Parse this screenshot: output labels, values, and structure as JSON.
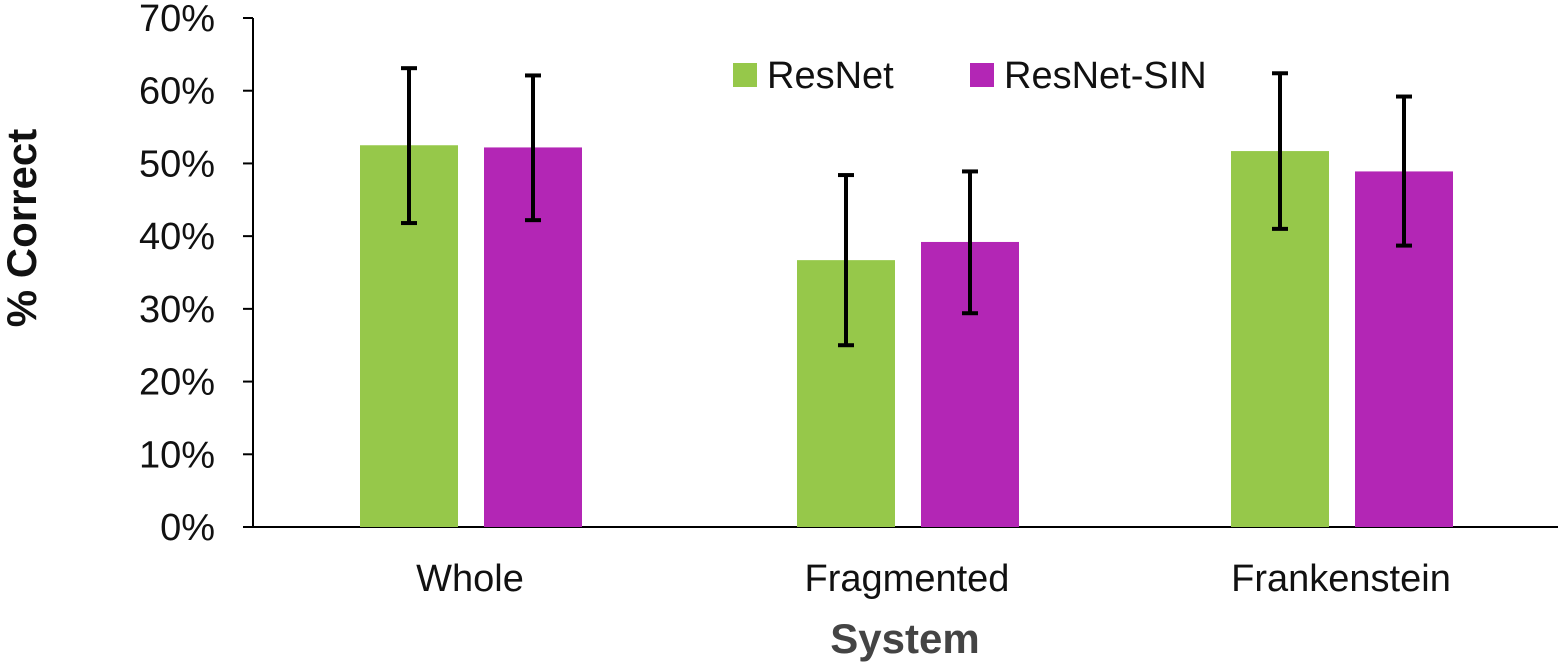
{
  "chart_data": {
    "type": "bar",
    "title": "",
    "xlabel": "System",
    "ylabel": "% Correct",
    "ylim": [
      0,
      70
    ],
    "yticks": [
      0,
      10,
      20,
      30,
      40,
      50,
      60,
      70
    ],
    "ytick_format": "percent",
    "categories": [
      "Whole",
      "Fragmented",
      "Frankenstein"
    ],
    "series": [
      {
        "name": "ResNet",
        "color": "#96c84a",
        "values": [
          52.5,
          36.7,
          51.7
        ],
        "error_low": [
          41.8,
          25.0,
          41.0
        ],
        "error_high": [
          63.1,
          48.4,
          62.4
        ]
      },
      {
        "name": "ResNet-SIN",
        "color": "#b326b5",
        "values": [
          52.2,
          39.2,
          48.9
        ],
        "error_low": [
          42.2,
          29.4,
          38.7
        ],
        "error_high": [
          62.1,
          48.9,
          59.2
        ]
      }
    ],
    "grid": false,
    "legend_position": "top-center"
  }
}
